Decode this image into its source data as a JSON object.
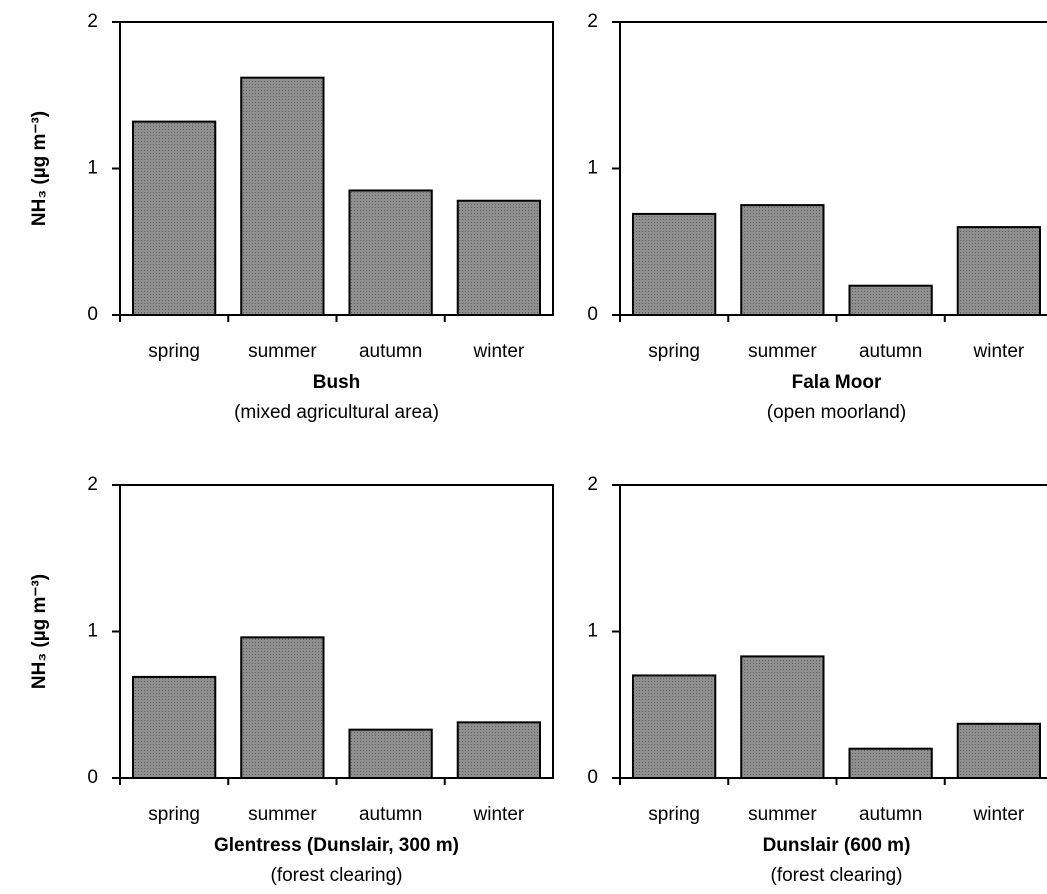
{
  "chart_data": [
    {
      "type": "bar",
      "title": "Bush",
      "subtitle": "(mixed agricultural area)",
      "ylabel": "NH₃ (µg m⁻³)",
      "categories": [
        "spring",
        "summer",
        "autumn",
        "winter"
      ],
      "values": [
        1.32,
        1.62,
        0.85,
        0.78
      ],
      "color": "#8f8f8f",
      "ylim": [
        0,
        2
      ],
      "yticks": [
        0,
        1,
        2
      ]
    },
    {
      "type": "bar",
      "title": "Fala Moor",
      "subtitle": "(open moorland)",
      "categories": [
        "spring",
        "summer",
        "autumn",
        "winter"
      ],
      "values": [
        0.69,
        0.75,
        0.2,
        0.6
      ],
      "color": "#8f8f8f",
      "ylim": [
        0,
        2
      ],
      "yticks": [
        0,
        1,
        2
      ]
    },
    {
      "type": "bar",
      "title": "Glentress (Dunslair, 300 m)",
      "subtitle": "(forest clearing)",
      "ylabel": "NH₃ (µg m⁻³)",
      "categories": [
        "spring",
        "summer",
        "autumn",
        "winter"
      ],
      "values": [
        0.69,
        0.96,
        0.33,
        0.38
      ],
      "color": "#8f8f8f",
      "ylim": [
        0,
        2
      ],
      "yticks": [
        0,
        1,
        2
      ]
    },
    {
      "type": "bar",
      "title": "Dunslair (600 m)",
      "subtitle": "(forest clearing)",
      "categories": [
        "spring",
        "summer",
        "autumn",
        "winter"
      ],
      "values": [
        0.7,
        0.83,
        0.2,
        0.37
      ],
      "color": "#8f8f8f",
      "ylim": [
        0,
        2
      ],
      "yticks": [
        0,
        1,
        2
      ]
    }
  ]
}
